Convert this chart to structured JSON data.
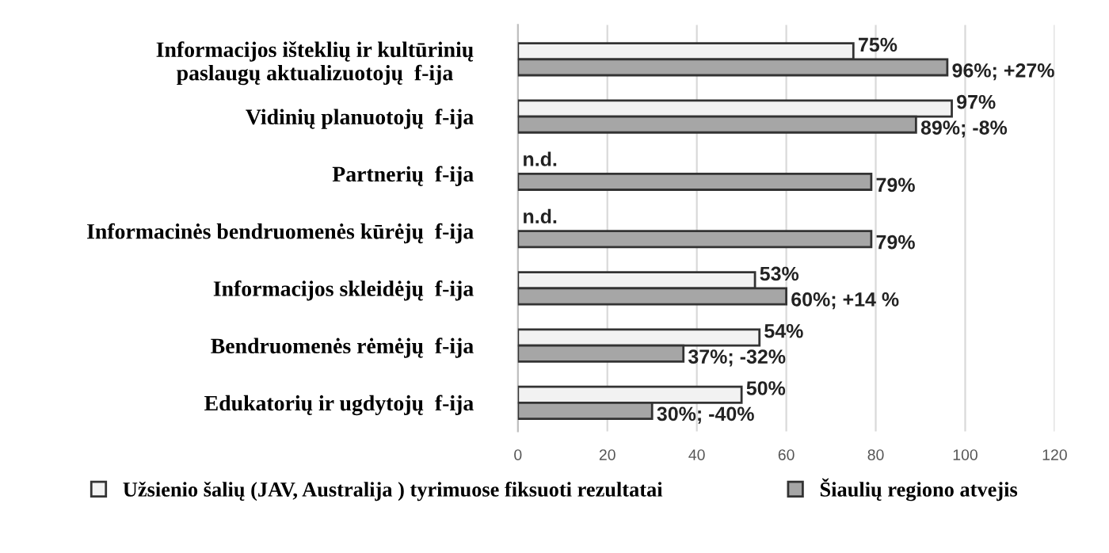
{
  "chart_data": {
    "type": "bar",
    "orientation": "horizontal",
    "categories": [
      "Informacijos išteklių ir kultūrinių\npaslaugų aktualizuotojų  f-ija",
      "Vidinių planuotojų  f-ija",
      "Partnerių  f-ija",
      "Informacinės bendruomenės kūrėjų  f-ija",
      "Informacijos skleidėjų  f-ija",
      "Bendruomenės rėmėjų  f-ija",
      "Edukatorių ir ugdytojų  f-ija"
    ],
    "series": [
      {
        "name": "Užsienio šalių (JAV, Australija ) tyrimuose fiksuoti rezultatai",
        "color": "#f2f2f2",
        "values": [
          75,
          97,
          null,
          null,
          53,
          54,
          50
        ],
        "value_labels": [
          "75%",
          "97%",
          "n.d.",
          "n.d.",
          "53%",
          "54%",
          "50%"
        ]
      },
      {
        "name": "Šiaulių regiono atvejis",
        "color": "#a6a6a6",
        "values": [
          96,
          89,
          79,
          79,
          60,
          37,
          30
        ],
        "value_labels": [
          "96%; +27%",
          "89%; -8%",
          "79%",
          "79%",
          "60%; +14 %",
          "37%; -32%",
          "30%; -40%"
        ]
      }
    ],
    "xlim": [
      0,
      120
    ],
    "xticks": [
      0,
      20,
      40,
      60,
      80,
      100,
      120
    ],
    "grid": "x",
    "legend": "bottom"
  }
}
